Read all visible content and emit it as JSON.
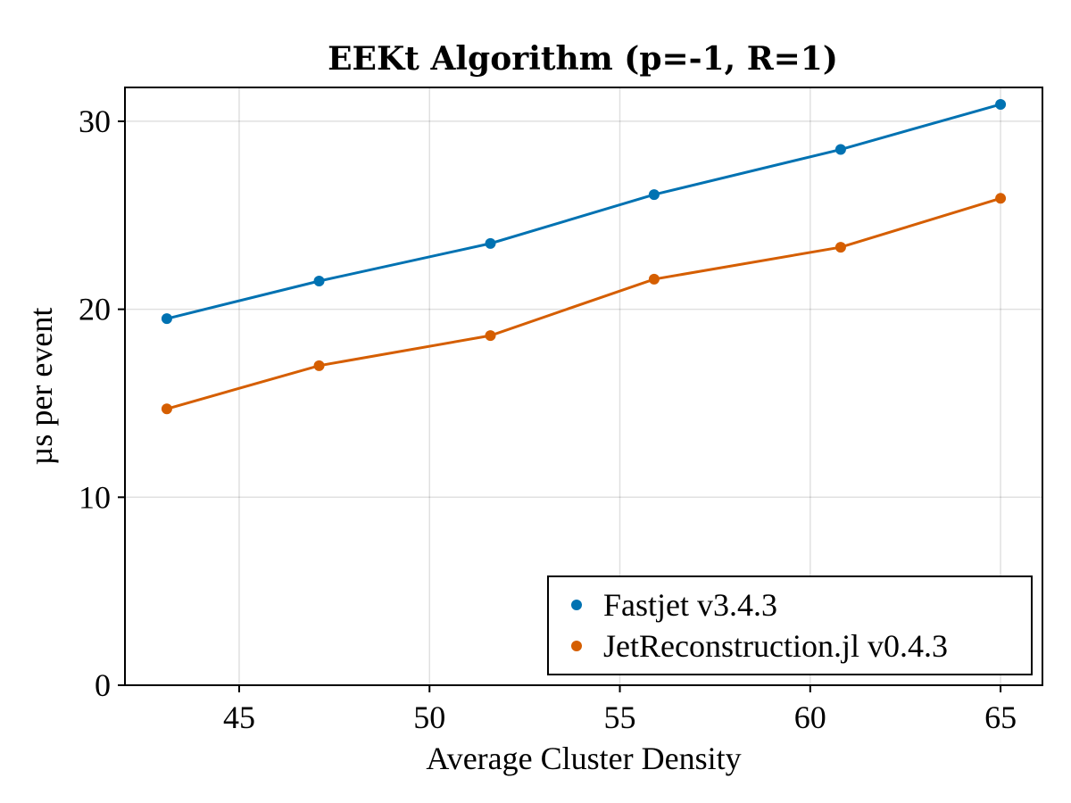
{
  "chart_data": {
    "type": "line",
    "title": "EEKt Algorithm (p=-1, R=1)",
    "xlabel": "Average Cluster Density",
    "ylabel": "µs per event",
    "xlim": [
      42,
      66.1
    ],
    "ylim": [
      0,
      31.8
    ],
    "xticks": [
      45,
      50,
      55,
      60,
      65
    ],
    "yticks": [
      0,
      10,
      20,
      30
    ],
    "grid": true,
    "legend_position": "bottom-right",
    "series": [
      {
        "name": "Fastjet v3.4.3",
        "color": "#0072b2",
        "x": [
          43.1,
          47.1,
          51.6,
          55.9,
          60.8,
          65.0
        ],
        "y": [
          19.5,
          21.5,
          23.5,
          26.1,
          28.5,
          30.9
        ]
      },
      {
        "name": "JetReconstruction.jl v0.4.3",
        "color": "#d55e00",
        "x": [
          43.1,
          47.1,
          51.6,
          55.9,
          60.8,
          65.0
        ],
        "y": [
          14.7,
          17.0,
          18.6,
          21.6,
          23.3,
          25.9
        ]
      }
    ]
  }
}
